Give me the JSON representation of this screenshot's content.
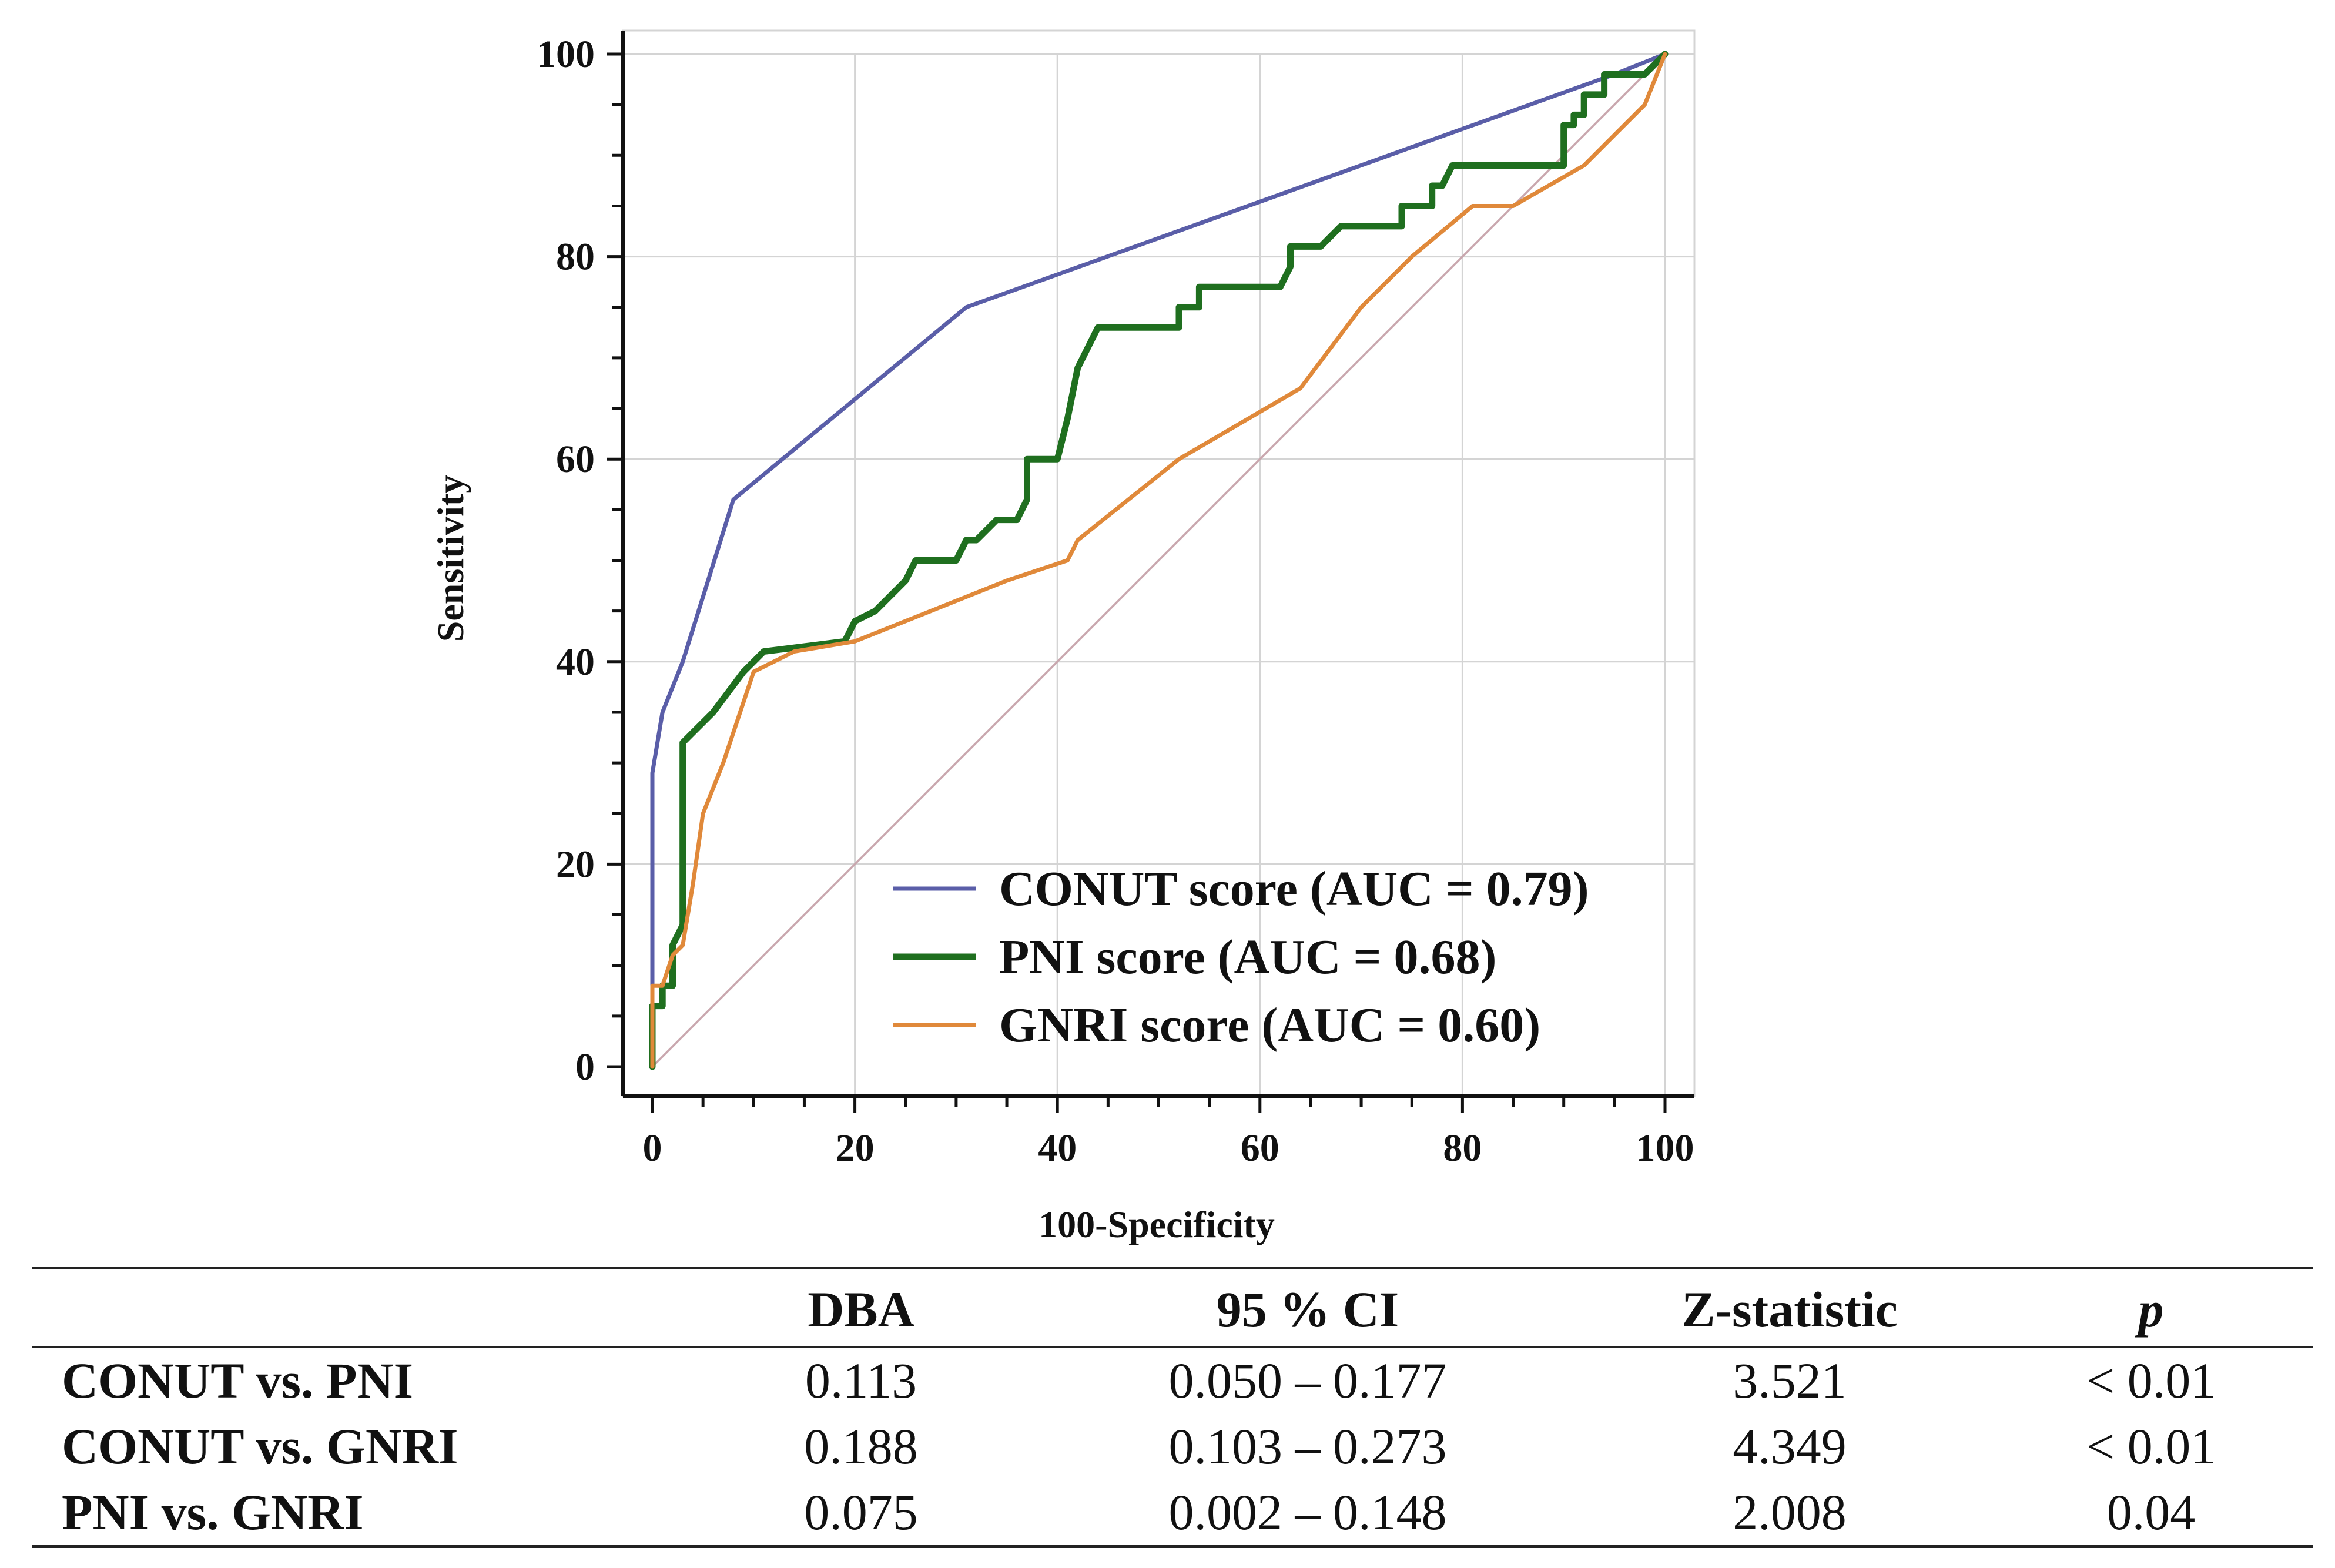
{
  "chart_data": {
    "type": "line",
    "title": "",
    "xlabel": "100-Specificity",
    "ylabel": "Sensitivity",
    "xlim": [
      0,
      100
    ],
    "ylim": [
      0,
      100
    ],
    "xticks": [
      0,
      20,
      40,
      60,
      80,
      100
    ],
    "yticks": [
      0,
      20,
      40,
      60,
      80,
      100
    ],
    "grid": true,
    "legend_position": "bottom-right",
    "reference_line": {
      "x": [
        0,
        100
      ],
      "y": [
        0,
        100
      ],
      "color": "#c9a7ae"
    },
    "series": [
      {
        "name": "CONUT score (AUC = 0.79)",
        "color": "#5a5ea8",
        "points": [
          [
            0,
            0
          ],
          [
            0,
            29
          ],
          [
            1,
            35
          ],
          [
            3,
            40
          ],
          [
            8,
            56
          ],
          [
            31,
            75
          ],
          [
            95,
            98
          ],
          [
            100,
            100
          ]
        ]
      },
      {
        "name": "PNI score (AUC = 0.68)",
        "color": "#1f6f1f",
        "points": [
          [
            0,
            0
          ],
          [
            0,
            6
          ],
          [
            1,
            6
          ],
          [
            1,
            8
          ],
          [
            2,
            8
          ],
          [
            2,
            12
          ],
          [
            3,
            14
          ],
          [
            3,
            25
          ],
          [
            3,
            32
          ],
          [
            4,
            33
          ],
          [
            6,
            35
          ],
          [
            9,
            39
          ],
          [
            11,
            41
          ],
          [
            15,
            41.5
          ],
          [
            19,
            42
          ],
          [
            20,
            44
          ],
          [
            22,
            45
          ],
          [
            25,
            48
          ],
          [
            26,
            50
          ],
          [
            30,
            50
          ],
          [
            31,
            52
          ],
          [
            32,
            52
          ],
          [
            33,
            53
          ],
          [
            34,
            54
          ],
          [
            36,
            54
          ],
          [
            37,
            56
          ],
          [
            37,
            60
          ],
          [
            40,
            60
          ],
          [
            41,
            64
          ],
          [
            42,
            69
          ],
          [
            43,
            71
          ],
          [
            44,
            73
          ],
          [
            52,
            73
          ],
          [
            52,
            75
          ],
          [
            54,
            75
          ],
          [
            54,
            77
          ],
          [
            62,
            77
          ],
          [
            63,
            79
          ],
          [
            63,
            81
          ],
          [
            66,
            81
          ],
          [
            68,
            83
          ],
          [
            74,
            83
          ],
          [
            74,
            85
          ],
          [
            77,
            85
          ],
          [
            77,
            87
          ],
          [
            78,
            87
          ],
          [
            79,
            89
          ],
          [
            90,
            89
          ],
          [
            90,
            93
          ],
          [
            91,
            93
          ],
          [
            91,
            94
          ],
          [
            92,
            94
          ],
          [
            92,
            96
          ],
          [
            94,
            96
          ],
          [
            94,
            98
          ],
          [
            98,
            98
          ],
          [
            100,
            100
          ]
        ]
      },
      {
        "name": "GNRI score (AUC = 0.60)",
        "color": "#e0893a",
        "points": [
          [
            0,
            0
          ],
          [
            0,
            8
          ],
          [
            1,
            8
          ],
          [
            2,
            11
          ],
          [
            3,
            12
          ],
          [
            4,
            18
          ],
          [
            5,
            25
          ],
          [
            7,
            30
          ],
          [
            10,
            39
          ],
          [
            14,
            41
          ],
          [
            20,
            42
          ],
          [
            30,
            46
          ],
          [
            35,
            48
          ],
          [
            41,
            50
          ],
          [
            42,
            52
          ],
          [
            52,
            60
          ],
          [
            64,
            67
          ],
          [
            70,
            75
          ],
          [
            75,
            80
          ],
          [
            81,
            85
          ],
          [
            85,
            85
          ],
          [
            92,
            89
          ],
          [
            95,
            92
          ],
          [
            98,
            95
          ],
          [
            100,
            100
          ]
        ]
      }
    ]
  },
  "legend": [
    {
      "label": "CONUT score (AUC = 0.79)",
      "color": "#5a5ea8"
    },
    {
      "label": "PNI score (AUC = 0.68)",
      "color": "#1f6f1f"
    },
    {
      "label": "GNRI score (AUC = 0.60)",
      "color": "#e0893a"
    }
  ],
  "table": {
    "headers": [
      "",
      "DBA",
      "95 % CI",
      "Z-statistic",
      "p"
    ],
    "rows": [
      [
        "CONUT vs. PNI",
        "0.113",
        "0.050 – 0.177",
        "3.521",
        "< 0.01"
      ],
      [
        "CONUT vs. GNRI",
        "0.188",
        "0.103 – 0.273",
        "4.349",
        "< 0.01"
      ],
      [
        "PNI vs. GNRI",
        "0.075",
        "0.002 – 0.148",
        "2.008",
        "0.04"
      ]
    ]
  }
}
